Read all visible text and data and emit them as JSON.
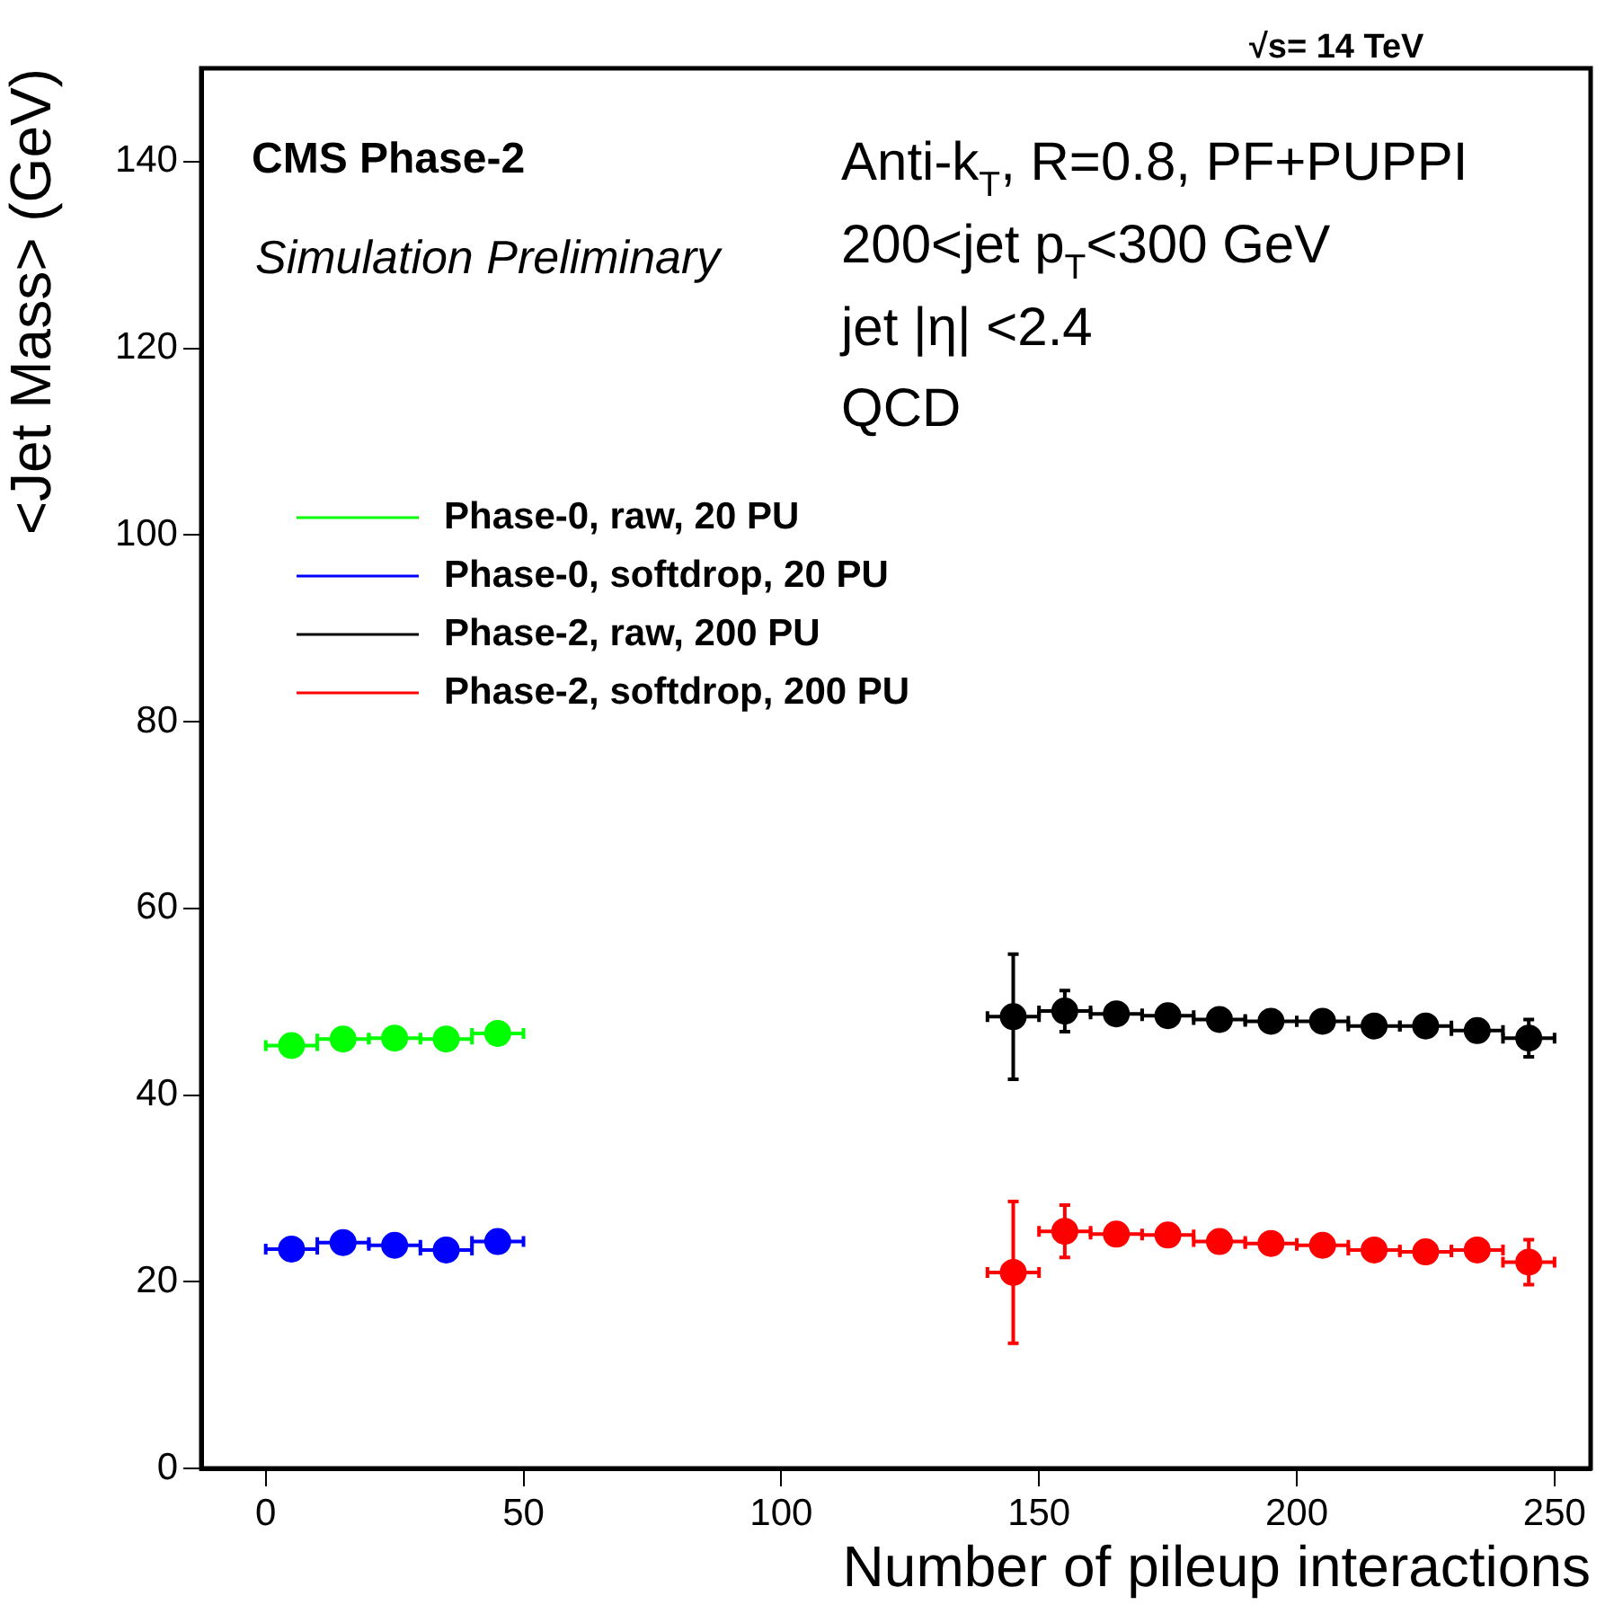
{
  "chart_data": {
    "type": "scatter",
    "xlabel": "Number of pileup interactions",
    "ylabel": "<Jet Mass> (GeV)",
    "xlim": [
      -12.5,
      257
    ],
    "xticks": [
      0,
      50,
      100,
      150,
      200,
      250
    ],
    "ylim": [
      0,
      150
    ],
    "yticks": [
      0,
      20,
      40,
      60,
      80,
      100,
      120,
      140
    ],
    "grid": false,
    "legend": "top left",
    "marker": "circle",
    "annotations": [
      "√s= 14 TeV",
      "CMS Phase-2",
      "Simulation Preliminary",
      "Anti-k$_{T}$, R=0.8, PF+PUPPI",
      "200<jet p$_{T}$<300 GeV",
      "jet |η| <2.4",
      "QCD"
    ],
    "series": [
      {
        "name": "Phase-0, raw, 20 PU",
        "color": "#00ff00",
        "x": [
          5,
          15,
          25,
          35,
          45
        ],
        "values": [
          45.3,
          46.0,
          46.1,
          46.0,
          46.6
        ],
        "xerrors": [
          5,
          5,
          5,
          5,
          5
        ]
      },
      {
        "name": "Phase-0, softdrop, 20 PU",
        "color": "#0000ff",
        "x": [
          5,
          15,
          25,
          35,
          45
        ],
        "values": [
          23.5,
          24.2,
          23.9,
          23.4,
          24.3
        ],
        "xerrors": [
          5,
          5,
          5,
          5,
          5
        ]
      },
      {
        "name": "Phase-2, raw, 200 PU",
        "color": "#000000",
        "x": [
          145,
          155,
          165,
          175,
          185,
          195,
          205,
          215,
          225,
          235,
          245
        ],
        "values": [
          48.4,
          49.0,
          48.7,
          48.5,
          48.1,
          47.9,
          47.9,
          47.4,
          47.4,
          46.9,
          46.1
        ],
        "xerrors": [
          5,
          5,
          5,
          5,
          5,
          5,
          5,
          5,
          5,
          5,
          5
        ],
        "errors": [
          6.7,
          2.2,
          null,
          null,
          null,
          null,
          null,
          null,
          null,
          null,
          2.0
        ]
      },
      {
        "name": "Phase-2, softdrop, 200 PU",
        "color": "#ff0000",
        "x": [
          145,
          155,
          165,
          175,
          185,
          195,
          205,
          215,
          225,
          235,
          245
        ],
        "values": [
          21.0,
          25.4,
          25.1,
          25.0,
          24.3,
          24.1,
          23.9,
          23.4,
          23.2,
          23.4,
          22.1
        ],
        "xerrors": [
          5,
          5,
          5,
          5,
          5,
          5,
          5,
          5,
          5,
          5,
          5
        ],
        "errors": [
          7.6,
          2.8,
          null,
          null,
          null,
          null,
          null,
          null,
          null,
          null,
          2.4
        ]
      }
    ]
  }
}
